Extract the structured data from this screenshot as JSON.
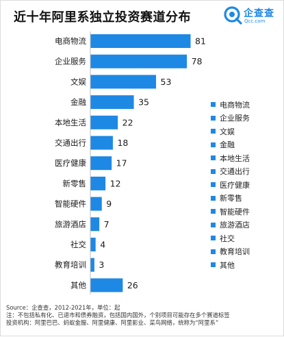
{
  "header": {
    "title": "近十年阿里系独立投资赛道分布",
    "logo_text": "企查查",
    "logo_sub": "Qcc.com"
  },
  "chart_data": {
    "type": "bar",
    "orientation": "horizontal",
    "title": "近十年阿里系独立投资赛道分布",
    "categories": [
      "电商物流",
      "企业服务",
      "文娱",
      "金融",
      "本地生活",
      "交通出行",
      "医疗健康",
      "新零售",
      "智能硬件",
      "旅游酒店",
      "社交",
      "教育培训",
      "其他"
    ],
    "values": [
      81,
      78,
      53,
      35,
      22,
      18,
      17,
      12,
      9,
      7,
      4,
      3,
      26
    ],
    "bar_color": "#1e88e5",
    "data_labels": true,
    "xlim": [
      0,
      81
    ],
    "grid": false,
    "legend_position": "right",
    "legend_entries": [
      "电商物流",
      "企业服务",
      "文娱",
      "金融",
      "本地生活",
      "交通出行",
      "医疗健康",
      "新零售",
      "智能硬件",
      "旅游酒店",
      "社交",
      "教育培训",
      "其他"
    ]
  },
  "footer": {
    "source": "Source：企查查，2012-2021年，单位：起",
    "note_line1": "注：不包括私有化、已退市和债券融资，包括国内国外，个别项目可能存在多个赛道标签",
    "note_line2": "投资机构：阿里巴巴、蚂蚁金服、阿里健康、阿里影业、菜鸟网络，统称为“阿里系”"
  }
}
